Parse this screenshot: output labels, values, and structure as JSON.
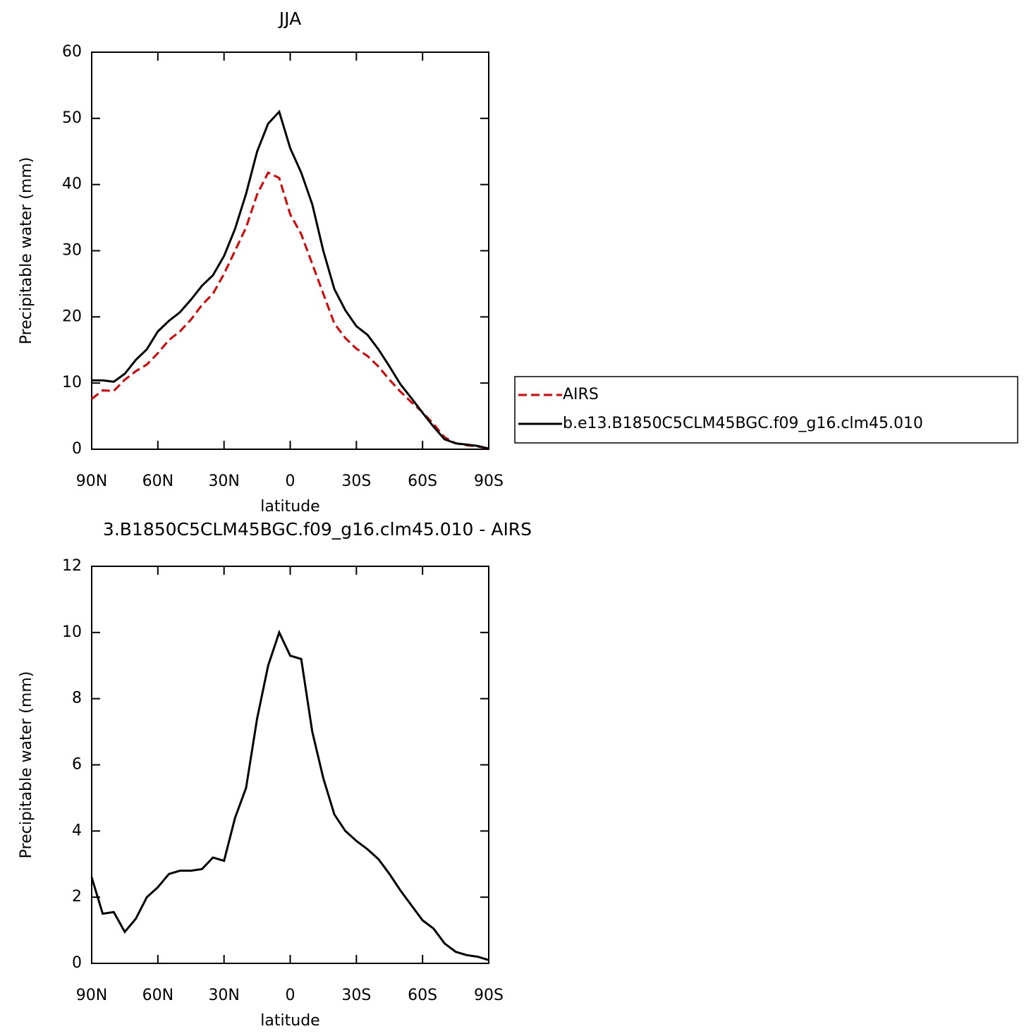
{
  "chart_data": [
    {
      "type": "line",
      "title": "JJA",
      "xlabel": "latitude",
      "ylabel": "Precipitable water (mm)",
      "x": [
        90,
        85,
        80,
        75,
        70,
        65,
        60,
        55,
        50,
        45,
        40,
        35,
        30,
        25,
        20,
        15,
        10,
        5,
        0,
        -5,
        -10,
        -15,
        -20,
        -25,
        -30,
        -35,
        -40,
        -45,
        -50,
        -55,
        -60,
        -65,
        -70,
        -75,
        -80,
        -85,
        -90
      ],
      "series": [
        {
          "name": "AIRS",
          "color": "#e00000",
          "line_style": "dashed",
          "values": [
            7.6,
            8.9,
            8.8,
            10.5,
            11.8,
            12.8,
            14.5,
            16.5,
            17.8,
            19.6,
            21.8,
            23.5,
            26.5,
            30,
            33.5,
            38.5,
            41.8,
            41,
            35.5,
            32.5,
            28,
            23.5,
            19,
            16.8,
            15.2,
            14.1,
            12.5,
            10.5,
            8.7,
            7.1,
            5.6,
            3.8,
            1.8,
            0.9,
            0.6,
            0.4,
            0.1
          ]
        },
        {
          "name": "b.e13.B1850C5CLM45BGC.f09_g16.clm45.010",
          "color": "#000000",
          "line_style": "solid",
          "values": [
            10.4,
            10.4,
            10.2,
            11.4,
            13.5,
            15.1,
            17.8,
            19.4,
            20.7,
            22.6,
            24.7,
            26.3,
            29.2,
            33.3,
            38.6,
            45,
            49.2,
            51,
            45.5,
            41.8,
            37,
            30,
            24.2,
            21,
            18.6,
            17.3,
            15.1,
            12.5,
            9.8,
            7.7,
            5.5,
            3.4,
            1.5,
            0.9,
            0.7,
            0.5,
            0.1
          ]
        }
      ],
      "xlim": [
        90,
        -90
      ],
      "xticks": [
        {
          "value": 90,
          "label": "90N"
        },
        {
          "value": 60,
          "label": "60N"
        },
        {
          "value": 30,
          "label": "30N"
        },
        0,
        {
          "value": -30,
          "label": "30S"
        },
        {
          "value": -60,
          "label": "60S"
        },
        {
          "value": -90,
          "label": "90S"
        }
      ],
      "ylim": [
        0,
        60
      ],
      "yticks": [
        0,
        10,
        20,
        30,
        40,
        50,
        60
      ],
      "legend": "right"
    },
    {
      "type": "line",
      "title": "3.B1850C5CLM45BGC.f09_g16.clm45.010 - AIRS",
      "xlabel": "latitude",
      "ylabel": "Precipitable water (mm)",
      "x": [
        90,
        85,
        80,
        75,
        70,
        65,
        60,
        55,
        50,
        45,
        40,
        35,
        30,
        25,
        20,
        15,
        10,
        5,
        0,
        -5,
        -10,
        -15,
        -20,
        -25,
        -30,
        -35,
        -40,
        -45,
        -50,
        -55,
        -60,
        -65,
        -70,
        -75,
        -80,
        -85,
        -90
      ],
      "series": [
        {
          "color": "#000000",
          "line_style": "solid",
          "values": [
            2.6,
            1.5,
            1.55,
            0.95,
            1.35,
            2.0,
            2.3,
            2.7,
            2.8,
            2.8,
            2.85,
            3.2,
            3.1,
            4.4,
            5.3,
            7.4,
            9.0,
            10.0,
            9.3,
            9.2,
            7.0,
            5.6,
            4.5,
            4.0,
            3.7,
            3.45,
            3.15,
            2.7,
            2.2,
            1.75,
            1.3,
            1.05,
            0.6,
            0.35,
            0.25,
            0.2,
            0.1
          ]
        }
      ],
      "xlim": [
        90,
        -90
      ],
      "xticks": [
        {
          "value": 90,
          "label": "90N"
        },
        {
          "value": 60,
          "label": "60N"
        },
        {
          "value": 30,
          "label": "30N"
        },
        0,
        {
          "value": -30,
          "label": "30S"
        },
        {
          "value": -60,
          "label": "60S"
        },
        {
          "value": -90,
          "label": "90S"
        }
      ],
      "ylim": [
        0,
        12
      ],
      "yticks": [
        0,
        2,
        4,
        6,
        8,
        10,
        12
      ]
    }
  ]
}
